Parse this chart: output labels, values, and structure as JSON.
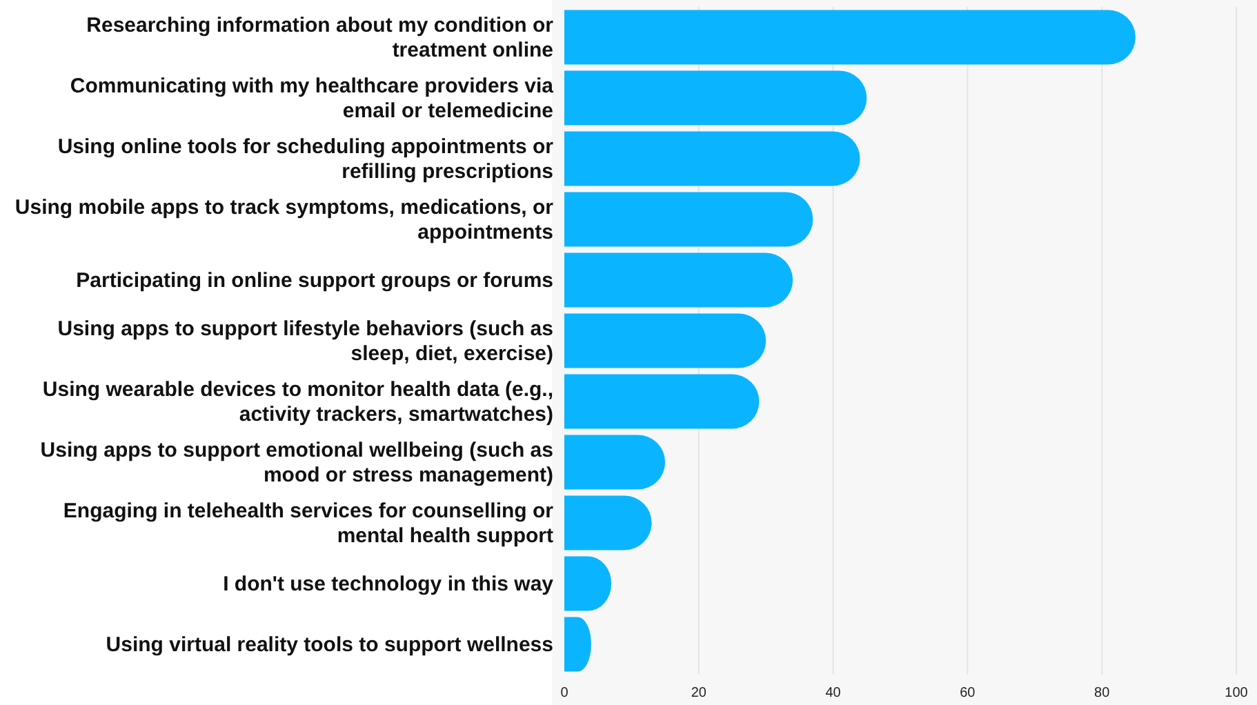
{
  "chart_data": {
    "type": "bar",
    "orientation": "horizontal",
    "categories": [
      "Researching information about my condition or treatment online",
      "Communicating with my healthcare providers via email or telemedicine",
      "Using online tools for scheduling appointments or refilling prescriptions",
      "Using mobile apps to track symptoms, medications, or appointments",
      "Participating in online support groups or forums",
      "Using apps to support lifestyle behaviors (such as sleep, diet, exercise)",
      "Using wearable devices to monitor health data (e.g., activity trackers, smartwatches)",
      "Using apps to support emotional wellbeing (such as mood or stress management)",
      "Engaging in telehealth services for counselling or mental health support",
      "I don't use technology in this way",
      "Using virtual reality tools to support wellness"
    ],
    "values": [
      85,
      45,
      44,
      37,
      34,
      30,
      29,
      15,
      13,
      7,
      4
    ],
    "color": "#0bb4ff",
    "xlim": [
      0,
      100
    ],
    "xticks": [
      0,
      20,
      40,
      60,
      80,
      100
    ],
    "grid": "x"
  }
}
